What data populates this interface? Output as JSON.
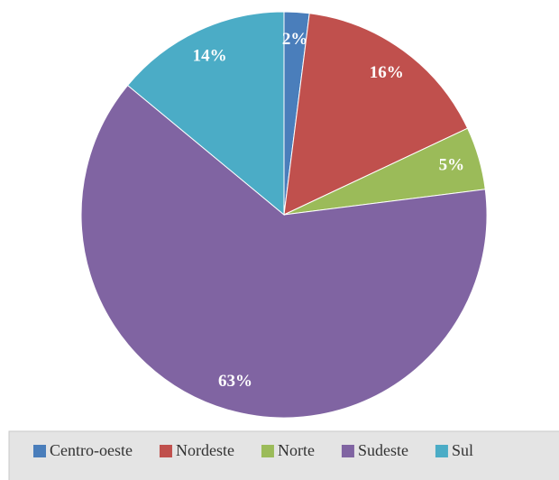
{
  "chart_data": {
    "type": "pie",
    "categories": [
      "Centro-oeste",
      "Nordeste",
      "Norte",
      "Sudeste",
      "Sul"
    ],
    "values": [
      2,
      16,
      5,
      63,
      14
    ],
    "value_labels": [
      "2%",
      "16%",
      "5%",
      "63%",
      "14%"
    ],
    "colors": [
      "#4a7ebb",
      "#c0504d",
      "#9bbb59",
      "#8064a2",
      "#4bacc6"
    ],
    "legend": "bottom"
  }
}
